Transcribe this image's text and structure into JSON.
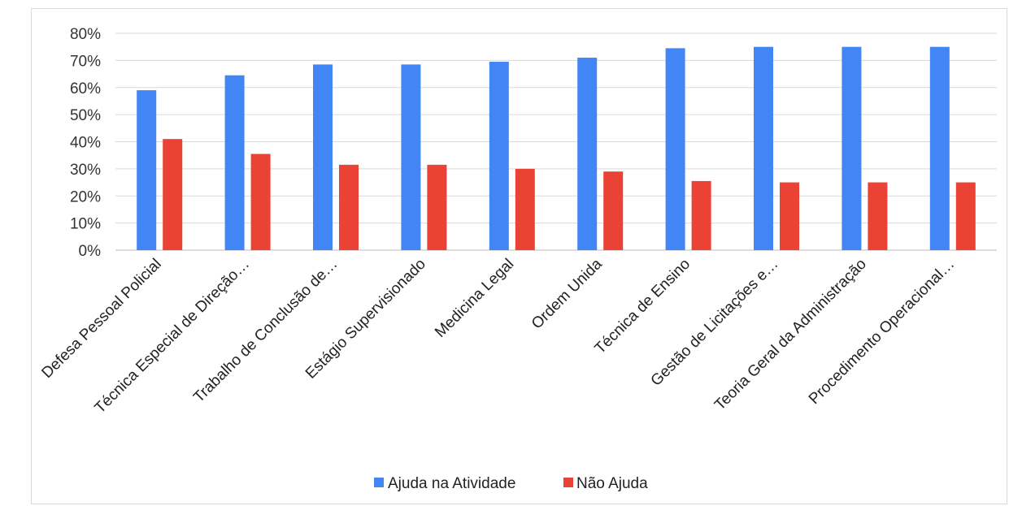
{
  "chart_data": {
    "type": "bar",
    "categories": [
      "Defesa Pessoal Policial",
      "Técnica Especial de Direção…",
      "Trabalho de Conclusão de…",
      "Estágio Supervisionado",
      "Medicina Legal",
      "Ordem Unida",
      "Técnica de Ensino",
      "Gestão de Licitações e…",
      "Teoria Geral da Administração",
      "Procedimento Operacional…"
    ],
    "series": [
      {
        "name": "Ajuda na Atividade",
        "color": "#4285f4",
        "values": [
          59,
          64.5,
          68.5,
          68.5,
          69.5,
          71,
          74.5,
          75,
          75,
          75
        ]
      },
      {
        "name": "Não Ajuda",
        "color": "#ea4335",
        "values": [
          41,
          35.5,
          31.5,
          31.5,
          30,
          29,
          25.5,
          25,
          25,
          25
        ]
      }
    ],
    "ylim": [
      0,
      80
    ],
    "y_ticks": [
      "0%",
      "10%",
      "20%",
      "30%",
      "40%",
      "50%",
      "60%",
      "70%",
      "80%"
    ],
    "y_unit": "%",
    "grid": true,
    "legend_position": "bottom"
  }
}
